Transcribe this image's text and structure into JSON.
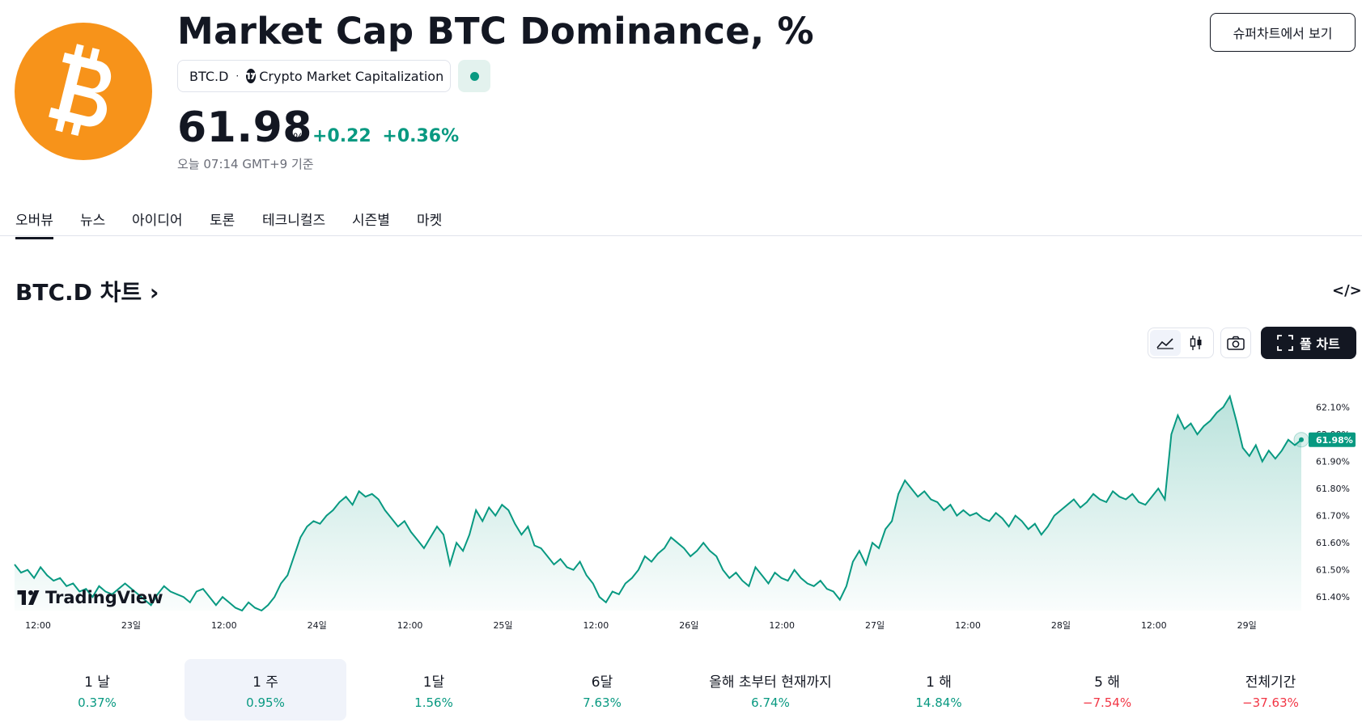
{
  "header": {
    "title": "Market Cap BTC Dominance, %",
    "symbol": "BTC.D",
    "separator": "·",
    "exchange": "Crypto Market Capitalization",
    "super_chart_label": "슈퍼차트에서 보기",
    "logo_icon": "bitcoin-logo-icon",
    "status_color": "#089981"
  },
  "quote": {
    "price": "61.98",
    "unit": "%",
    "change_abs": "+0.22",
    "change_pct": "+0.36%",
    "as_of": "오늘 07:14 GMT+9 기준"
  },
  "tabs": [
    {
      "label": "오버뷰",
      "active": true
    },
    {
      "label": "뉴스"
    },
    {
      "label": "아이디어"
    },
    {
      "label": "토론"
    },
    {
      "label": "테크니컬즈"
    },
    {
      "label": "시즌별"
    },
    {
      "label": "마켓"
    }
  ],
  "chart_section": {
    "title": "BTC.D 차트",
    "chevron": "›",
    "embed_label": "</>",
    "full_chart_label": "풀 차트",
    "watermark": "TradingView"
  },
  "chart_data": {
    "type": "area",
    "x_tick_labels": [
      "12:00",
      "23일",
      "12:00",
      "24일",
      "12:00",
      "25일",
      "12:00",
      "26일",
      "12:00",
      "27일",
      "12:00",
      "28일",
      "12:00",
      "29일"
    ],
    "y_tick_labels": [
      "62.10%",
      "62.00%",
      "61.90%",
      "61.80%",
      "61.70%",
      "61.60%",
      "61.50%",
      "61.40%"
    ],
    "ylim": [
      61.35,
      62.2
    ],
    "last_value_label": "61.98%",
    "last_value": 61.98,
    "line_color": "#089981",
    "fill_color": "#089981",
    "series": [
      {
        "values": [
          61.52,
          61.49,
          61.5,
          61.47,
          61.51,
          61.48,
          61.46,
          61.47,
          61.44,
          61.45,
          61.42,
          61.43,
          61.4,
          61.44,
          61.42,
          61.41,
          61.43,
          61.45,
          61.43,
          61.41,
          61.39,
          61.37,
          61.41,
          61.44,
          61.42,
          61.41,
          61.4,
          61.38,
          61.42,
          61.43,
          61.4,
          61.37,
          61.4,
          61.38,
          61.36,
          61.35,
          61.38,
          61.36,
          61.35,
          61.37,
          61.4,
          61.45,
          61.48,
          61.55,
          61.62,
          61.66,
          61.68,
          61.67,
          61.7,
          61.72,
          61.75,
          61.77,
          61.74,
          61.79,
          61.77,
          61.78,
          61.76,
          61.72,
          61.69,
          61.66,
          61.68,
          61.64,
          61.61,
          61.58,
          61.62,
          61.66,
          61.63,
          61.52,
          61.6,
          61.57,
          61.63,
          61.72,
          61.68,
          61.73,
          61.7,
          61.74,
          61.72,
          61.67,
          61.63,
          61.66,
          61.59,
          61.58,
          61.55,
          61.52,
          61.54,
          61.51,
          61.5,
          61.53,
          61.48,
          61.45,
          61.4,
          61.38,
          61.42,
          61.41,
          61.45,
          61.47,
          61.5,
          61.55,
          61.53,
          61.56,
          61.58,
          61.62,
          61.6,
          61.58,
          61.55,
          61.57,
          61.6,
          61.57,
          61.55,
          61.5,
          61.47,
          61.49,
          61.46,
          61.44,
          61.51,
          61.48,
          61.45,
          61.49,
          61.47,
          61.46,
          61.5,
          61.47,
          61.45,
          61.44,
          61.46,
          61.43,
          61.42,
          61.39,
          61.44,
          61.53,
          61.57,
          61.52,
          61.6,
          61.58,
          61.65,
          61.68,
          61.78,
          61.83,
          61.8,
          61.77,
          61.79,
          61.76,
          61.75,
          61.72,
          61.74,
          61.7,
          61.72,
          61.7,
          61.71,
          61.69,
          61.68,
          61.71,
          61.69,
          61.66,
          61.7,
          61.68,
          61.65,
          61.67,
          61.63,
          61.66,
          61.7,
          61.72,
          61.74,
          61.76,
          61.73,
          61.75,
          61.78,
          61.76,
          61.75,
          61.79,
          61.77,
          61.76,
          61.78,
          61.75,
          61.74,
          61.77,
          61.8,
          61.76,
          62.0,
          62.07,
          62.02,
          62.04,
          62.0,
          62.03,
          62.05,
          62.08,
          62.1,
          62.14,
          62.05,
          61.95,
          61.92,
          61.96,
          61.9,
          61.94,
          61.91,
          61.94,
          61.98,
          61.96,
          61.98
        ]
      }
    ],
    "grid": false
  },
  "periods": [
    {
      "label": "1 날",
      "value": "0.37%",
      "sign": "pos"
    },
    {
      "label": "1 주",
      "value": "0.95%",
      "sign": "pos",
      "active": true
    },
    {
      "label": "1달",
      "value": "1.56%",
      "sign": "pos"
    },
    {
      "label": "6달",
      "value": "7.63%",
      "sign": "pos"
    },
    {
      "label": "올해 초부터 현재까지",
      "value": "6.74%",
      "sign": "pos"
    },
    {
      "label": "1 해",
      "value": "14.84%",
      "sign": "pos"
    },
    {
      "label": "5 해",
      "value": "−7.54%",
      "sign": "neg"
    },
    {
      "label": "전체기간",
      "value": "−37.63%",
      "sign": "neg"
    }
  ]
}
